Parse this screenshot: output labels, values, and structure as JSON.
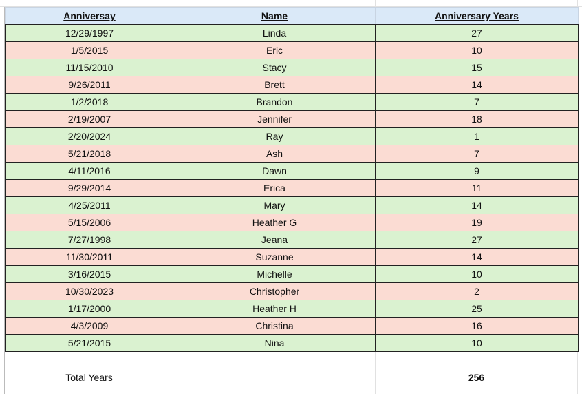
{
  "table": {
    "headers": [
      "Anniversay",
      "Name",
      "Anniversary Years"
    ],
    "rows": [
      [
        "12/29/1997",
        "Linda",
        27
      ],
      [
        "1/5/2015",
        "Eric",
        10
      ],
      [
        "11/15/2010",
        "Stacy",
        15
      ],
      [
        "9/26/2011",
        "Brett",
        14
      ],
      [
        "1/2/2018",
        "Brandon",
        7
      ],
      [
        "2/19/2007",
        "Jennifer",
        18
      ],
      [
        "2/20/2024",
        "Ray",
        1
      ],
      [
        "5/21/2018",
        "Ash",
        7
      ],
      [
        "4/11/2016",
        "Dawn",
        9
      ],
      [
        "9/29/2014",
        "Erica",
        11
      ],
      [
        "4/25/2011",
        "Mary",
        14
      ],
      [
        "5/15/2006",
        "Heather G",
        19
      ],
      [
        "7/27/1998",
        "Jeana",
        27
      ],
      [
        "11/30/2011",
        "Suzanne",
        14
      ],
      [
        "3/16/2015",
        "Michelle",
        10
      ],
      [
        "10/30/2023",
        "Christopher",
        2
      ],
      [
        "1/17/2000",
        "Heather H",
        25
      ],
      [
        "4/3/2009",
        "Christina",
        16
      ],
      [
        "5/21/2015",
        "Nina",
        10
      ]
    ],
    "total_label": "Total Years",
    "total_value": 256
  }
}
